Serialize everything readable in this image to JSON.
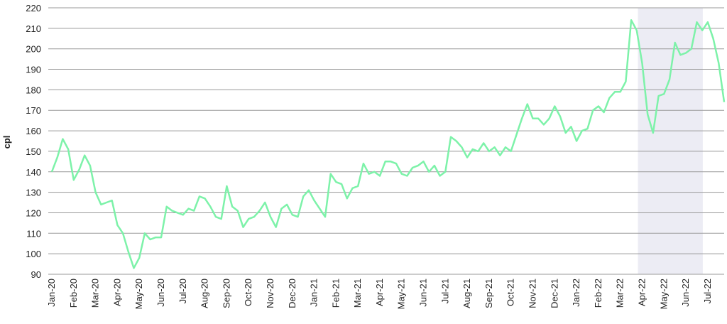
{
  "chart_data": {
    "type": "line",
    "ylabel": "cpl",
    "categories": [
      "Jan-20",
      null,
      null,
      null,
      "Feb-20",
      null,
      null,
      null,
      "Mar-20",
      null,
      null,
      null,
      "Apr-20",
      null,
      null,
      null,
      "May-20",
      null,
      null,
      null,
      "Jun-20",
      null,
      null,
      null,
      "Jul-20",
      null,
      null,
      null,
      "Aug-20",
      null,
      null,
      null,
      "Sep-20",
      null,
      null,
      null,
      "Oct-20",
      null,
      null,
      null,
      "Nov-20",
      null,
      null,
      null,
      "Dec-20",
      null,
      null,
      null,
      "Jan-21",
      null,
      null,
      null,
      "Feb-21",
      null,
      null,
      null,
      "Mar-21",
      null,
      null,
      null,
      "Apr-21",
      null,
      null,
      null,
      "May-21",
      null,
      null,
      null,
      "Jun-21",
      null,
      null,
      null,
      "Jul-21",
      null,
      null,
      null,
      "Aug-21",
      null,
      null,
      null,
      "Sep-21",
      null,
      null,
      null,
      "Oct-21",
      null,
      null,
      null,
      "Nov-21",
      null,
      null,
      null,
      "Dec-21",
      null,
      null,
      null,
      "Jan-22",
      null,
      null,
      null,
      "Feb-22",
      null,
      null,
      null,
      "Mar-22",
      null,
      null,
      null,
      "Apr-22",
      null,
      null,
      null,
      "May-22",
      null,
      null,
      null,
      "Jun-22",
      null,
      null,
      null,
      "Jul-22",
      null,
      null,
      null
    ],
    "series": [
      {
        "name": "cpl",
        "color": "#7df2a9",
        "values": [
          140,
          147,
          156,
          151,
          136,
          141,
          148,
          143,
          130,
          124,
          125,
          126,
          114,
          110,
          101,
          93,
          98,
          110,
          107,
          108,
          108,
          123,
          121,
          120,
          119,
          122,
          121,
          128,
          127,
          123,
          118,
          117,
          133,
          123,
          121,
          113,
          117,
          118,
          121,
          125,
          118,
          113,
          122,
          124,
          119,
          118,
          128,
          131,
          126,
          122,
          118,
          139,
          135,
          134,
          127,
          132,
          133,
          144,
          139,
          140,
          138,
          145,
          145,
          144,
          139,
          138,
          142,
          143,
          145,
          140,
          143,
          138,
          140,
          157,
          155,
          152,
          147,
          151,
          150,
          154,
          150,
          152,
          148,
          152,
          150,
          158,
          166,
          173,
          166,
          166,
          163,
          166,
          172,
          167,
          159,
          162,
          155,
          160,
          161,
          170,
          172,
          169,
          176,
          179,
          179,
          184,
          214,
          209,
          193,
          168,
          159,
          177,
          178,
          185,
          203,
          197,
          198,
          200,
          213,
          209,
          213,
          205,
          193,
          174
        ]
      }
    ],
    "highlight": {
      "start": "Apr-22",
      "end": "Jul-22",
      "color": "#ececf4"
    },
    "ylim": [
      90,
      220
    ],
    "yticks": [
      90,
      100,
      110,
      120,
      130,
      140,
      150,
      160,
      170,
      180,
      190,
      200,
      210,
      220
    ],
    "grid": true
  }
}
